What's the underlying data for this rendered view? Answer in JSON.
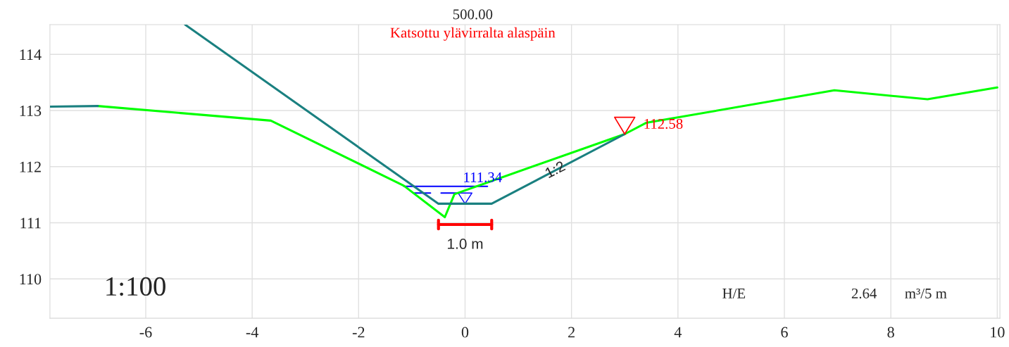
{
  "chart_data": {
    "type": "line",
    "title": "500.00",
    "subtitle": "Katsottu ylävirralta alaspäin",
    "series": [
      {
        "color": "#00ff00",
        "x": [
          -6.9,
          -3.65,
          -1.15,
          -0.38,
          -0.2,
          3.0,
          3.4,
          6.94,
          8.69,
          10.0
        ],
        "values": [
          113.08,
          112.82,
          111.66,
          111.1,
          111.51,
          112.58,
          112.78,
          113.36,
          113.2,
          113.41
        ]
      },
      {
        "color": "#1a8080",
        "x": [
          -7.8,
          -6.9
        ],
        "values": [
          113.07,
          113.08
        ]
      },
      {
        "color": "#1a8080",
        "x": [
          -5.26,
          -0.5,
          0.5,
          3.0
        ],
        "values": [
          114.53,
          111.34,
          111.34,
          112.58
        ]
      }
    ],
    "annotations": [
      {
        "text": "1:2",
        "x": 1.7,
        "y": 111.93
      },
      {
        "text": "111.34",
        "x": 0,
        "y": 111.34
      },
      {
        "text": "112.58",
        "x": 3.0,
        "y": 112.58
      },
      "1.0 m",
      "1:100",
      "H/E",
      "2.64",
      "m³/5 m"
    ],
    "xlim": [
      -7.8,
      10.05
    ],
    "ylim": [
      109.3,
      114.53
    ],
    "xticks": [
      -6,
      -4,
      -2,
      0,
      2,
      4,
      6,
      8,
      10
    ],
    "yticks": [
      110,
      111,
      112,
      113,
      114
    ],
    "grid": true,
    "marker": "none",
    "line_style": "solid"
  }
}
